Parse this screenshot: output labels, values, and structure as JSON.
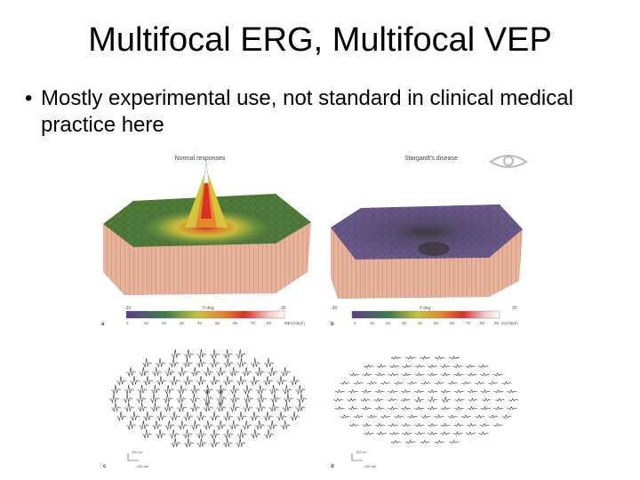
{
  "slide": {
    "title": "Multifocal ERG, Multifocal VEP",
    "bullets": [
      "Mostly experimental use, not standard in clinical medical practice here"
    ]
  },
  "figure": {
    "panels": [
      {
        "id": "a",
        "title": "Normal responses"
      },
      {
        "id": "b",
        "title": "Stargardt’s disease"
      },
      {
        "id": "c",
        "title": ""
      },
      {
        "id": "d",
        "title": ""
      }
    ],
    "colorbar_ticks": [
      "0",
      "10",
      "20",
      "30",
      "40",
      "50",
      "60",
      "70",
      "80",
      "90"
    ],
    "colorbar_unit": "(nV/deg²)",
    "axis_ticks": [
      "-30",
      "0 deg",
      "30"
    ],
    "scale_labels": {
      "c": [
        "200 nV",
        "100 ms"
      ],
      "d": [
        "100 nV",
        "100 ms"
      ]
    },
    "logo": "eye-logo",
    "colors": {
      "surface_green": "#4f7a3a",
      "surface_purple": "#6a5a8c",
      "peak_red": "#d9302a",
      "wall_pink": "#e8b39a"
    }
  }
}
